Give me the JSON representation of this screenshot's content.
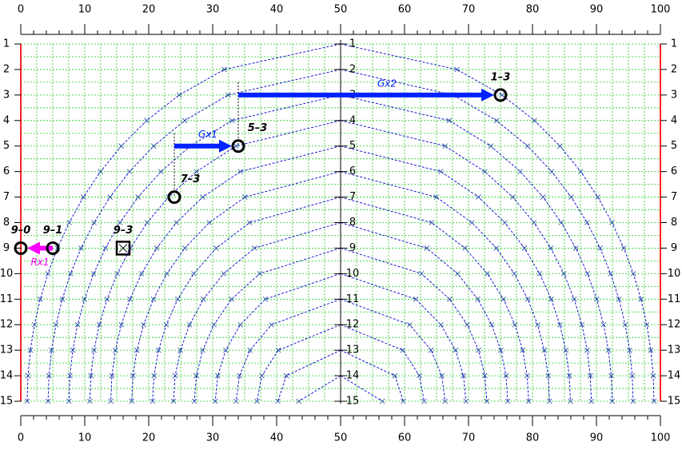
{
  "top_axis": {
    "ticks": [
      0,
      10,
      20,
      30,
      40,
      50,
      60,
      70,
      80,
      90,
      100
    ]
  },
  "bottom_axis": {
    "ticks": [
      0,
      10,
      20,
      30,
      40,
      50,
      60,
      70,
      80,
      90,
      100
    ]
  },
  "left_axis": {
    "ticks": [
      1,
      2,
      3,
      4,
      5,
      6,
      7,
      8,
      9,
      10,
      11,
      12,
      13,
      14,
      15
    ]
  },
  "right_axis": {
    "ticks": [
      1,
      2,
      3,
      4,
      5,
      6,
      7,
      8,
      9,
      10,
      11,
      12,
      13,
      14,
      15
    ]
  },
  "center_axis": {
    "ticks": [
      1,
      2,
      3,
      4,
      5,
      6,
      7,
      8,
      9,
      10,
      11,
      12,
      13,
      14,
      15
    ]
  },
  "nodes": [
    {
      "label": "1–3",
      "x": 75,
      "row": 3,
      "shape": "circle"
    },
    {
      "label": "5–3",
      "x": 34,
      "row": 5,
      "shape": "circle"
    },
    {
      "label": "7–3",
      "x": 24,
      "row": 7,
      "shape": "circle"
    },
    {
      "label": "9–0",
      "x": 0,
      "row": 9,
      "shape": "circle"
    },
    {
      "label": "9–1",
      "x": 5,
      "row": 9,
      "shape": "circle"
    },
    {
      "label": "9–3",
      "x": 16,
      "row": 9,
      "shape": "box"
    }
  ],
  "arrows": [
    {
      "label": "Gx2",
      "from": 34,
      "to": 75,
      "row": 3,
      "color": "#0022ff"
    },
    {
      "label": "Gx1",
      "from": 24,
      "to": 34,
      "row": 5,
      "color": "#0022ff"
    },
    {
      "label": "Rx1",
      "from": 5,
      "to": 0,
      "row": 9,
      "color": "#ff00ff"
    }
  ]
}
